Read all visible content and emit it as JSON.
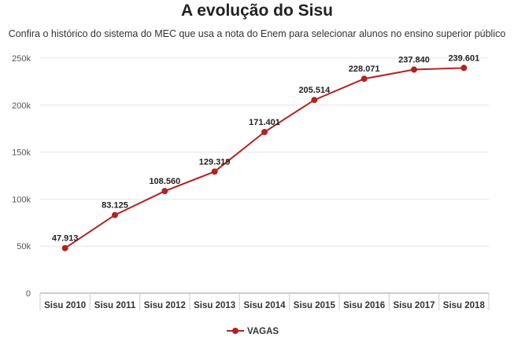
{
  "chart_data": {
    "type": "line",
    "title": "A evolução do Sisu",
    "subtitle": "Confira o histórico do sistema do MEC que usa a nota do Enem para selecionar alunos no ensino superior público",
    "categories": [
      "Sisu 2010",
      "Sisu 2011",
      "Sisu 2012",
      "Sisu 2013",
      "Sisu 2014",
      "Sisu 2015",
      "Sisu 2016",
      "Sisu 2017",
      "Sisu 2018"
    ],
    "series": [
      {
        "name": "VAGAS",
        "values": [
          47913,
          83125,
          108560,
          129319,
          171401,
          205514,
          228071,
          237840,
          239601
        ],
        "labels": [
          "47.913",
          "83.125",
          "108.560",
          "129.319",
          "171.401",
          "205.514",
          "228.071",
          "237.840",
          "239.601"
        ]
      }
    ],
    "ylim": [
      0,
      250000
    ],
    "yticks": [
      0,
      50000,
      100000,
      150000,
      200000,
      250000
    ],
    "ytick_labels": [
      "0",
      "50k",
      "100k",
      "150k",
      "200k",
      "250k"
    ],
    "xlabel": "",
    "ylabel": "",
    "grid": true,
    "legend_position": "bottom-center",
    "color": "#b22222"
  }
}
